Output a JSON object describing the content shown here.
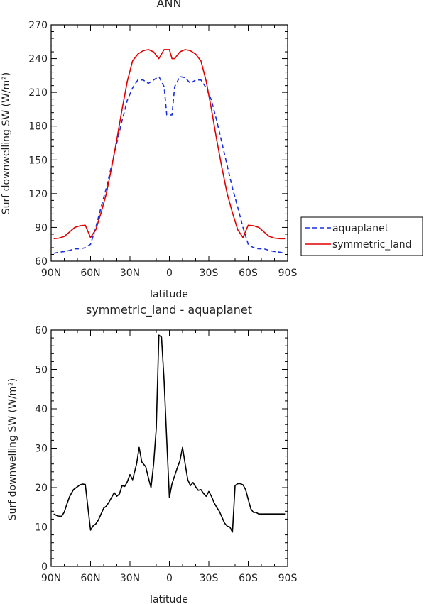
{
  "chart_data": [
    {
      "type": "line",
      "title": "ANN",
      "xlabel": "latitude",
      "ylabel": "Surf downwelling SW (W/m²)",
      "xlim": [
        90,
        -90
      ],
      "ylim": [
        60,
        270
      ],
      "xticks": [
        90,
        60,
        30,
        0,
        -30,
        -60,
        -90
      ],
      "xtick_labels": [
        "90N",
        "60N",
        "30N",
        "0",
        "30S",
        "60S",
        "90S"
      ],
      "yticks": [
        60,
        90,
        120,
        150,
        180,
        210,
        240,
        270
      ],
      "ytick_labels": [
        "60",
        "90",
        "120",
        "150",
        "180",
        "210",
        "240",
        "270"
      ],
      "legend_position": "right-outside",
      "grid": false,
      "series": [
        {
          "name": "aquaplanet",
          "color": "#1a2fe0",
          "dash": "dashed",
          "x": [
            88,
            84,
            80,
            76,
            72,
            68,
            64,
            60,
            56,
            52,
            48,
            44,
            40,
            36,
            32,
            28,
            24,
            20,
            16,
            12,
            8,
            4,
            2,
            0,
            -2,
            -4,
            -8,
            -12,
            -16,
            -20,
            -24,
            -28,
            -32,
            -36,
            -40,
            -44,
            -48,
            -52,
            -56,
            -60,
            -64,
            -68,
            -72,
            -76,
            -80,
            -84,
            -88
          ],
          "y": [
            67,
            68,
            68.5,
            69.5,
            71,
            71,
            72,
            75,
            90,
            108,
            125,
            145,
            165,
            185,
            203,
            214,
            221,
            221,
            218,
            221,
            224,
            215,
            190,
            190,
            190,
            215,
            224,
            223,
            218,
            221,
            221,
            214,
            203,
            185,
            165,
            145,
            125,
            108,
            90,
            75,
            72,
            71,
            71,
            69.5,
            68.5,
            68,
            67
          ]
        },
        {
          "name": "symmetric_land",
          "color": "#e00000",
          "dash": "solid",
          "x": [
            88,
            84,
            80,
            76,
            72,
            68,
            64,
            60,
            56,
            52,
            48,
            44,
            40,
            36,
            32,
            28,
            24,
            20,
            16,
            12,
            8,
            4,
            2,
            0,
            -2,
            -4,
            -8,
            -12,
            -16,
            -20,
            -24,
            -28,
            -32,
            -36,
            -40,
            -44,
            -48,
            -52,
            -56,
            -60,
            -64,
            -68,
            -72,
            -76,
            -80,
            -84,
            -88
          ],
          "y": [
            80,
            80.5,
            82,
            86,
            90,
            91.5,
            92,
            81,
            88,
            103,
            120,
            143,
            168,
            195,
            220,
            238,
            244,
            247,
            248,
            246,
            240,
            248,
            248,
            248,
            240,
            240,
            246,
            248,
            247,
            244,
            238,
            220,
            195,
            168,
            143,
            120,
            103,
            88,
            81,
            92,
            91.5,
            90,
            86,
            82,
            80.5,
            80,
            80
          ]
        }
      ]
    },
    {
      "type": "line",
      "title": "symmetric_land - aquaplanet",
      "xlabel": "latitude",
      "ylabel": "Surf downwelling SW (W/m²)",
      "xlim": [
        90,
        -90
      ],
      "ylim": [
        0,
        60
      ],
      "xticks": [
        90,
        60,
        30,
        0,
        -30,
        -60,
        -90
      ],
      "xtick_labels": [
        "90N",
        "60N",
        "30N",
        "0",
        "30S",
        "60S",
        "90S"
      ],
      "yticks": [
        0,
        10,
        20,
        30,
        40,
        50,
        60
      ],
      "ytick_labels": [
        "0",
        "10",
        "20",
        "30",
        "40",
        "50",
        "60"
      ],
      "grid": false,
      "series": [
        {
          "color": "#000000",
          "dash": "solid",
          "x": [
            88,
            85,
            82,
            80,
            78,
            76,
            73,
            68,
            66,
            64,
            62,
            60,
            58,
            56,
            54,
            50,
            48,
            46,
            42,
            40,
            38,
            36,
            34,
            32,
            30,
            28,
            25,
            23,
            21,
            18,
            16,
            14,
            12,
            10,
            8,
            6,
            4,
            2,
            0,
            -2,
            -4,
            -6,
            -8,
            -10,
            -12,
            -14,
            -16,
            -18,
            -20,
            -22,
            -24,
            -26,
            -28,
            -30,
            -32,
            -34,
            -36,
            -38,
            -42,
            -44,
            -46,
            -48,
            -50,
            -52,
            -54,
            -56,
            -58,
            -60,
            -62,
            -64,
            -66,
            -68,
            -70,
            -72,
            -74,
            -76,
            -78,
            -80,
            -82,
            -84,
            -86,
            -88
          ],
          "y": [
            13.3,
            12.8,
            12.7,
            13.8,
            15.8,
            17.7,
            19.5,
            20.7,
            20.9,
            20.8,
            15,
            9.2,
            10.3,
            10.8,
            11.8,
            14.8,
            15.3,
            16.3,
            18.7,
            17.8,
            18.4,
            20.5,
            20.3,
            21.5,
            23.3,
            22,
            26,
            30.2,
            26.5,
            25.3,
            22.5,
            20,
            26,
            35,
            58.7,
            58.2,
            47,
            32,
            17.5,
            21,
            23,
            25,
            26.8,
            30.2,
            26,
            22,
            20.5,
            21.3,
            20.2,
            19.3,
            19.5,
            18.5,
            17.8,
            19,
            17.8,
            16.2,
            15,
            14,
            11,
            10.2,
            10,
            8.7,
            20.5,
            21,
            21,
            20.7,
            19.5,
            17,
            14.6,
            13.7,
            13.7,
            13.3,
            13.3,
            13.3,
            13.3,
            13.3,
            13.3,
            13.3,
            13.3,
            13.3,
            13.3,
            13.3
          ]
        }
      ]
    }
  ]
}
